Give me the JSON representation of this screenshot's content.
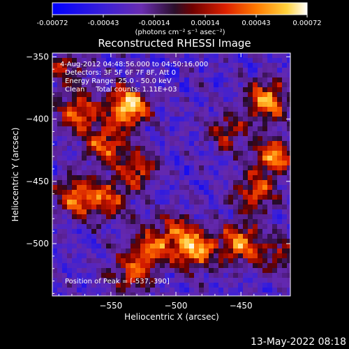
{
  "chart_data": {
    "type": "heatmap",
    "title": "Reconstructed RHESSI Image",
    "xlabel": "Heliocentric X (arcsec)",
    "ylabel": "Heliocentric Y (arcsec)",
    "xlim": [
      -595,
      -412
    ],
    "ylim": [
      -542,
      -347
    ],
    "x_ticks": [
      -550,
      -500,
      -450
    ],
    "y_ticks": [
      -350,
      -400,
      -450,
      -500
    ],
    "colorbar": {
      "range": [
        -0.00072,
        0.00072
      ],
      "tick_labels": [
        "-0.00072",
        "-0.00043",
        "-0.00014",
        "0.00014",
        "0.00043",
        "0.00072"
      ],
      "units_label": "(photons cm⁻² s⁻¹ asec⁻²)",
      "colormap": "blue-purple-red-yellow-white"
    },
    "annotations": {
      "time_range": "4-Aug-2012 04:48:56.000 to 04:50:16.000",
      "detectors": "Detectors: 3F 5F 6F 7F 8F, Att 0",
      "energy_range": "Energy Range: 25.0 - 50.0 keV",
      "clean_counts": "Clean     Total counts: 1.11E+03",
      "peak_position": "Position of Peak = [-537,-390]"
    },
    "hot_spots": [
      {
        "x": -537,
        "y": -390,
        "intensity": 1.0
      },
      {
        "x": -575,
        "y": -395,
        "intensity": 0.7
      },
      {
        "x": -555,
        "y": -420,
        "intensity": 0.65
      },
      {
        "x": -530,
        "y": -440,
        "intensity": 0.6
      },
      {
        "x": -575,
        "y": -462,
        "intensity": 0.75
      },
      {
        "x": -550,
        "y": -465,
        "intensity": 0.55
      },
      {
        "x": -430,
        "y": -385,
        "intensity": 0.8
      },
      {
        "x": -425,
        "y": -430,
        "intensity": 0.75
      },
      {
        "x": -440,
        "y": -460,
        "intensity": 0.6
      },
      {
        "x": -460,
        "y": -410,
        "intensity": 0.45
      },
      {
        "x": -485,
        "y": -505,
        "intensity": 0.8
      },
      {
        "x": -450,
        "y": -500,
        "intensity": 0.75
      },
      {
        "x": -520,
        "y": -505,
        "intensity": 0.6
      },
      {
        "x": -535,
        "y": -525,
        "intensity": 0.55
      },
      {
        "x": -500,
        "y": -490,
        "intensity": 0.5
      },
      {
        "x": -420,
        "y": -510,
        "intensity": 0.45
      },
      {
        "x": -585,
        "y": -360,
        "intensity": 0.45
      }
    ]
  },
  "timestamp": "13-May-2022 08:18"
}
